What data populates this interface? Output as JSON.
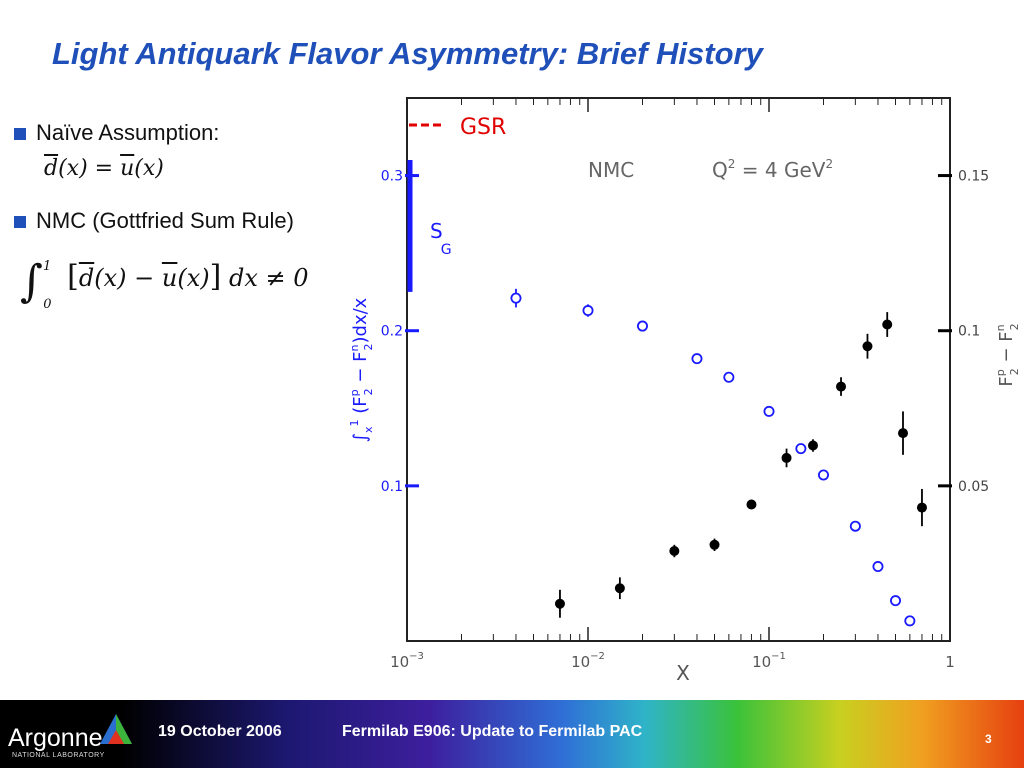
{
  "slide": {
    "title": "Light Antiquark Flavor Asymmetry:  Brief History",
    "bullets": [
      {
        "label": "Naïve Assumption:"
      },
      {
        "label": "NMC (Gottfried Sum Rule)"
      }
    ]
  },
  "footer": {
    "logo": "Argonne",
    "logo_sub": "NATIONAL LABORATORY",
    "date": "19 October 2006",
    "title": "Fermilab E906:  Update to Fermilab PAC",
    "page": "3"
  },
  "colors": {
    "title": "#1f4fb8",
    "blue": "#1a1aff",
    "black": "#000000",
    "red": "#e00000"
  },
  "chart_data": {
    "type": "scatter",
    "annotation": "NMC",
    "legend": {
      "label": "GSR",
      "placement": "top-left",
      "style": "red-dashed"
    },
    "x_axis": {
      "label": "X",
      "scale": "log",
      "range": [
        0.001,
        1
      ],
      "ticks": [
        "10-3",
        "10-2",
        "10-1",
        "1"
      ]
    },
    "y_left": {
      "label": "∫x1 (F2p − F2n) dx/x",
      "range": [
        0.0,
        0.35
      ],
      "ticks": [
        "0.1",
        "0.2",
        "0.3"
      ],
      "color": "blue"
    },
    "y_right": {
      "label": "F2p − F2n",
      "range": [
        0.0,
        0.175
      ],
      "ticks": [
        "0.05",
        "0.1",
        "0.15"
      ],
      "color": "black"
    },
    "sg_marker": {
      "label": "SG",
      "y_range": [
        0.225,
        0.31
      ]
    },
    "series": [
      {
        "axis": "left",
        "marker": "open-circle",
        "x": [
          0.004,
          0.01,
          0.02,
          0.04,
          0.06,
          0.1,
          0.15,
          0.2,
          0.3,
          0.4,
          0.5,
          0.6
        ],
        "y": [
          0.221,
          0.213,
          0.203,
          0.182,
          0.17,
          0.148,
          0.124,
          0.107,
          0.074,
          0.048,
          0.026,
          0.013
        ],
        "err": [
          0.006,
          0.004,
          0.0,
          0.0,
          0.0,
          0.0,
          0.0,
          0.0,
          0.0,
          0.0,
          0.0,
          0.0
        ]
      },
      {
        "axis": "right",
        "marker": "filled-circle",
        "x": [
          0.007,
          0.015,
          0.03,
          0.05,
          0.08,
          0.125,
          0.175,
          0.25,
          0.35,
          0.45,
          0.55,
          0.7
        ],
        "y": [
          0.012,
          0.017,
          0.029,
          0.031,
          0.044,
          0.059,
          0.063,
          0.082,
          0.095,
          0.102,
          0.067,
          0.043
        ],
        "err": [
          0.0045,
          0.0035,
          0.002,
          0.002,
          0.0015,
          0.003,
          0.002,
          0.003,
          0.004,
          0.004,
          0.007,
          0.006
        ]
      }
    ]
  }
}
